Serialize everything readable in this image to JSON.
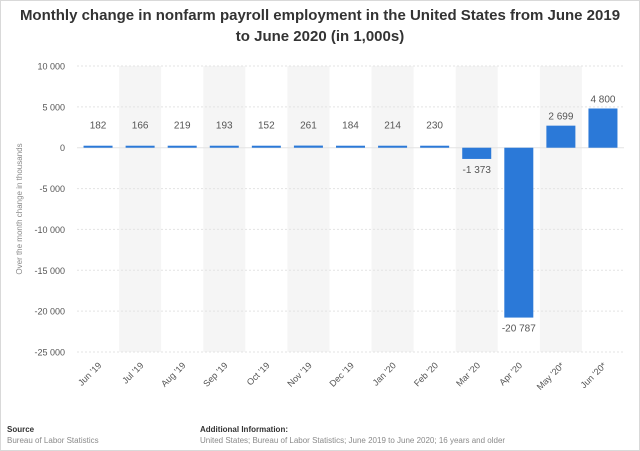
{
  "title_line1": "Monthly change in nonfarm payroll employment in the United States from June 2019",
  "title_line2": "to June 2020 (in 1,000s)",
  "footer": {
    "source_heading": "Source",
    "source_text": "Bureau of Labor Statistics",
    "info_heading": "Additional Information:",
    "info_text": "United States; Bureau of Labor Statistics; June 2019 to June 2020; 16 years and older"
  },
  "colors": {
    "bar": "#2b79d8",
    "grid": "#e3e3e3",
    "band": "#f5f5f5",
    "text": "#555555"
  },
  "chart_data": {
    "type": "bar",
    "title": "Monthly change in nonfarm payroll employment in the United States from June 2019 to June 2020 (in 1,000s)",
    "ylabel": "Over the month change in thousands",
    "xlabel": "",
    "categories": [
      "Jun '19",
      "Jul '19",
      "Aug '19",
      "Sep '19",
      "Oct '19",
      "Nov '19",
      "Dec '19",
      "Jan '20",
      "Feb '20",
      "Mar '20",
      "Apr '20",
      "May '20*",
      "Jun '20*"
    ],
    "values": [
      182,
      166,
      219,
      193,
      152,
      261,
      184,
      214,
      230,
      -1373,
      -20787,
      2699,
      4800
    ],
    "value_labels": [
      "182",
      "166",
      "219",
      "193",
      "152",
      "261",
      "184",
      "214",
      "230",
      "-1 373",
      "-20 787",
      "2 699",
      "4 800"
    ],
    "ylim": [
      -25000,
      10000
    ],
    "yticks": [
      10000,
      5000,
      0,
      -5000,
      -10000,
      -15000,
      -20000,
      -25000
    ],
    "ytick_labels": [
      "10 000",
      "5 000",
      "0",
      "-5 000",
      "-10 000",
      "-15 000",
      "-20 000",
      "-25 000"
    ],
    "grid": true
  }
}
